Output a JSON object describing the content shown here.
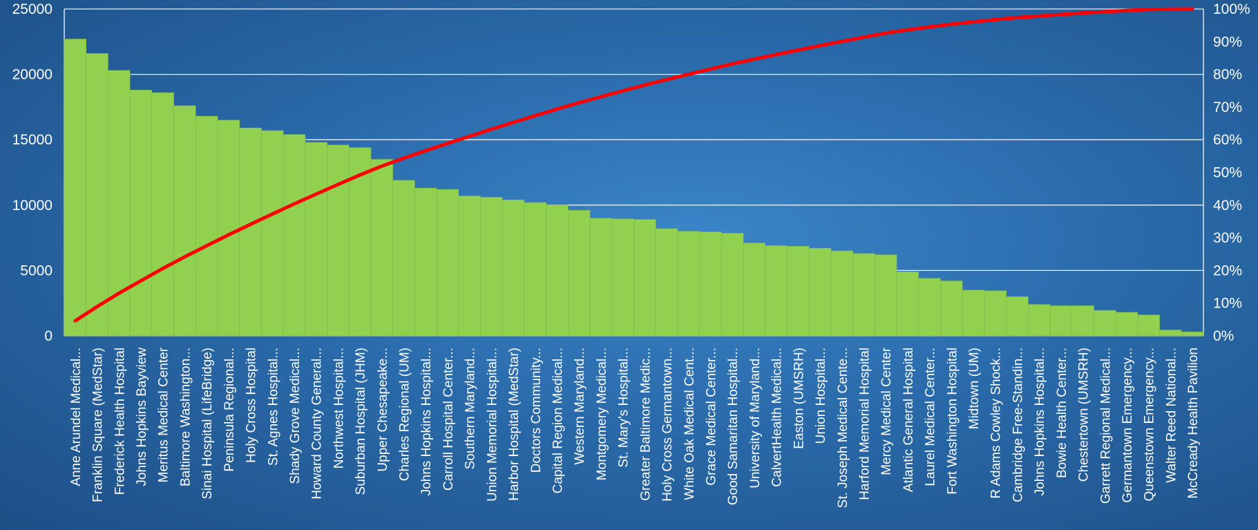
{
  "chart_data": {
    "type": "bar",
    "subtype": "pareto",
    "title": "",
    "xlabel": "",
    "ylabel": "",
    "ylim": [
      0,
      25000
    ],
    "y2lim": [
      0,
      100
    ],
    "y_ticks": [
      "0",
      "5000",
      "10000",
      "15000",
      "20000",
      "25000"
    ],
    "y2_ticks": [
      "0%",
      "10%",
      "20%",
      "30%",
      "40%",
      "50%",
      "60%",
      "70%",
      "80%",
      "90%",
      "100%"
    ],
    "grid": true,
    "legend": "none",
    "colors": {
      "bar": "#92d050",
      "line": "#ff0000",
      "gridline": "#ffffff"
    },
    "categories": [
      "Anne Arundel Medical...",
      "Franklin Square (MedStar)",
      "Frederick Health Hospital",
      "Johns Hopkins Bayview",
      "Meritus Medical Center",
      "Baltimore Washington...",
      "Sinai Hospital (LifeBridge)",
      "Peninsula Regional...",
      "Holy Cross Hospital",
      "St. Agnes Hospital...",
      "Shady Grove Medical...",
      "Howard County General...",
      "Northwest Hospital...",
      "Suburban Hospital (JHM)",
      "Upper Chesapeake...",
      "Charles Regional (UM)",
      "Johns Hopkins Hospital...",
      "Carroll Hospital Center...",
      "Southern Maryland...",
      "Union Memorial Hospital...",
      "Harbor Hospital (MedStar)",
      "Doctors Community...",
      "Capital Region Medical...",
      "Western Maryland...",
      "Montgomery Medical...",
      "St. Mary's Hospital...",
      "Greater Baltimore Medic...",
      "Holy Cross Germantown...",
      "White Oak Medical Cent...",
      "Grace Medical Center...",
      "Good Samaritan Hospital...",
      "University of Maryland...",
      "CalvertHealth Medical...",
      "Easton (UMSRH)",
      "Union Hospital...",
      "St. Joseph Medical Cente...",
      "Harford Memorial Hospital",
      "Mercy Medical Center",
      "Atlantic General Hospital",
      "Laurel Medical Center...",
      "Fort Washington Hospital",
      "Midtown (UM)",
      "R Adams Cowley Shock...",
      "Cambridge Free-Standin...",
      "Johns Hopkins Hospital...",
      "Bowie Health Center...",
      "Chestertown (UMSRH)",
      "Garrett Regional Medical...",
      "Germantown Emergency...",
      "Queenstown Emergency...",
      "Walter Reed National...",
      "McCready Health Pavilion"
    ],
    "series": [
      {
        "type": "bar",
        "axis": "left",
        "values": [
          22700,
          21600,
          20300,
          18800,
          18600,
          17600,
          16800,
          16500,
          15900,
          15700,
          15400,
          14800,
          14600,
          14400,
          13500,
          11900,
          11300,
          11200,
          10700,
          10600,
          10400,
          10200,
          10000,
          9600,
          9000,
          8950,
          8900,
          8200,
          8000,
          7950,
          7850,
          7100,
          6900,
          6850,
          6700,
          6500,
          6300,
          6200,
          4900,
          4400,
          4200,
          3500,
          3450,
          3000,
          2400,
          2300,
          2300,
          1950,
          1800,
          1600,
          450,
          300
        ]
      },
      {
        "type": "line",
        "axis": "right",
        "cumulative_percent": true
      }
    ]
  }
}
